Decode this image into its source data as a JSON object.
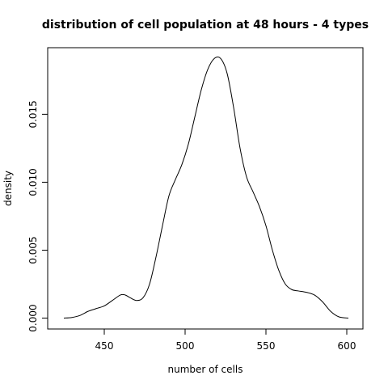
{
  "chart_data": {
    "type": "line",
    "title": "distribution of cell population at 48 hours - 4 types",
    "xlabel": "number of cells",
    "ylabel": "density",
    "xlim": [
      415,
      610
    ],
    "ylim": [
      -0.0008,
      0.0199
    ],
    "x_ticks": [
      450,
      500,
      550,
      600
    ],
    "x_tick_labels": [
      "450",
      "500",
      "550",
      "600"
    ],
    "y_ticks": [
      0,
      0.005,
      0.01,
      0.015
    ],
    "y_tick_labels": [
      "0.000",
      "0.005",
      "0.010",
      "0.015"
    ],
    "grid": false,
    "legend": "none",
    "line_color": "#000000",
    "series": [
      {
        "x": [
          425,
          430,
          435,
          440,
          445,
          450,
          455,
          460,
          463,
          466,
          470,
          474,
          478,
          482,
          486,
          490,
          494,
          498,
          502,
          506,
          510,
          514,
          518,
          522,
          526,
          530,
          534,
          538,
          542,
          546,
          550,
          554,
          558,
          562,
          566,
          570,
          575,
          580,
          585,
          590,
          595,
          601
        ],
        "y": [
          0.0,
          5e-05,
          0.0002,
          0.0005,
          0.0007,
          0.0009,
          0.0013,
          0.0017,
          0.0017,
          0.0015,
          0.0013,
          0.0015,
          0.0025,
          0.0045,
          0.0068,
          0.009,
          0.0102,
          0.0113,
          0.0128,
          0.0148,
          0.0168,
          0.0183,
          0.0191,
          0.0191,
          0.018,
          0.0155,
          0.0125,
          0.0104,
          0.0093,
          0.0082,
          0.0068,
          0.005,
          0.0035,
          0.0025,
          0.0021,
          0.002,
          0.0019,
          0.0017,
          0.0012,
          0.0005,
          0.0001,
          0.0
        ]
      }
    ]
  }
}
